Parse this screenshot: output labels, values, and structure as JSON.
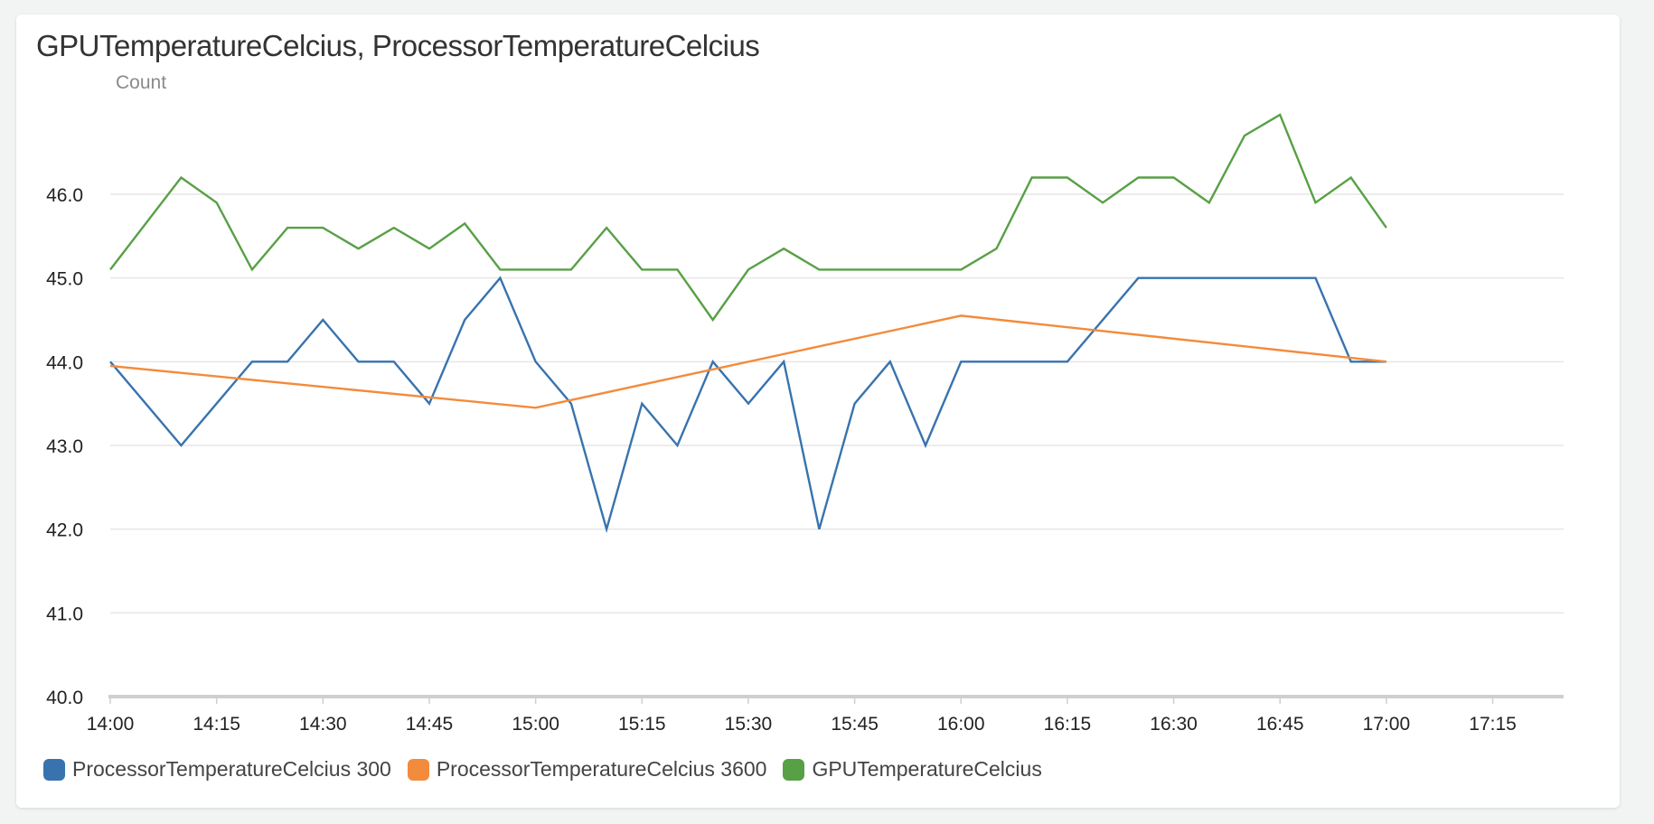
{
  "chart_data": {
    "type": "line",
    "title": "GPUTemperatureCelcius, ProcessorTemperatureCelcius",
    "ylabel": "Count",
    "xlabel": "",
    "ylim": [
      40.0,
      47.5
    ],
    "xlim": [
      "14:00",
      "17:25"
    ],
    "y_ticks": [
      "40.0",
      "41.0",
      "42.0",
      "43.0",
      "44.0",
      "45.0",
      "46.0"
    ],
    "x_ticks": [
      "14:00",
      "14:15",
      "14:30",
      "14:45",
      "15:00",
      "15:15",
      "15:30",
      "15:45",
      "16:00",
      "16:15",
      "16:30",
      "16:45",
      "17:00",
      "17:15"
    ],
    "grid": "horizontal",
    "legend_position": "bottom-left",
    "series": [
      {
        "name": "ProcessorTemperatureCelcius 300",
        "color": "#3873ae",
        "x": [
          "14:00",
          "14:10",
          "14:20",
          "14:25",
          "14:30",
          "14:35",
          "14:40",
          "14:45",
          "14:50",
          "14:55",
          "15:00",
          "15:05",
          "15:10",
          "15:15",
          "15:20",
          "15:25",
          "15:30",
          "15:35",
          "15:40",
          "15:45",
          "15:50",
          "15:55",
          "16:00",
          "16:05",
          "16:10",
          "16:15",
          "16:25",
          "16:30",
          "16:35",
          "16:40",
          "16:45",
          "16:50",
          "16:55",
          "17:00"
        ],
        "y": [
          44.0,
          43.0,
          44.0,
          44.0,
          44.5,
          44.0,
          44.0,
          43.5,
          44.5,
          45.0,
          44.0,
          43.5,
          42.0,
          43.5,
          43.0,
          44.0,
          43.5,
          44.0,
          42.0,
          43.5,
          44.0,
          43.0,
          44.0,
          44.0,
          44.0,
          44.0,
          45.0,
          45.0,
          45.0,
          45.0,
          45.0,
          45.0,
          44.0,
          44.0
        ]
      },
      {
        "name": "ProcessorTemperatureCelcius 3600",
        "color": "#f38b3c",
        "x": [
          "14:00",
          "15:00",
          "16:00",
          "17:00"
        ],
        "y": [
          43.95,
          43.45,
          44.55,
          44.0
        ]
      },
      {
        "name": "GPUTemperatureCelcius",
        "color": "#58a045",
        "x": [
          "14:00",
          "14:10",
          "14:15",
          "14:20",
          "14:25",
          "14:30",
          "14:35",
          "14:40",
          "14:45",
          "14:50",
          "14:55",
          "15:00",
          "15:05",
          "15:10",
          "15:15",
          "15:20",
          "15:25",
          "15:30",
          "15:35",
          "15:40",
          "15:45",
          "15:50",
          "15:55",
          "16:00",
          "16:05",
          "16:10",
          "16:15",
          "16:20",
          "16:25",
          "16:30",
          "16:35",
          "16:40",
          "16:45",
          "16:50",
          "16:55",
          "17:00"
        ],
        "y": [
          45.1,
          46.2,
          45.9,
          45.1,
          45.6,
          45.6,
          45.35,
          45.6,
          45.35,
          45.65,
          45.1,
          45.1,
          45.1,
          45.6,
          45.1,
          45.1,
          44.5,
          45.1,
          45.35,
          45.1,
          45.1,
          45.1,
          45.1,
          45.1,
          45.35,
          46.2,
          46.2,
          45.9,
          46.2,
          46.2,
          45.9,
          46.7,
          46.95,
          45.9,
          46.2,
          45.6
        ]
      }
    ]
  }
}
